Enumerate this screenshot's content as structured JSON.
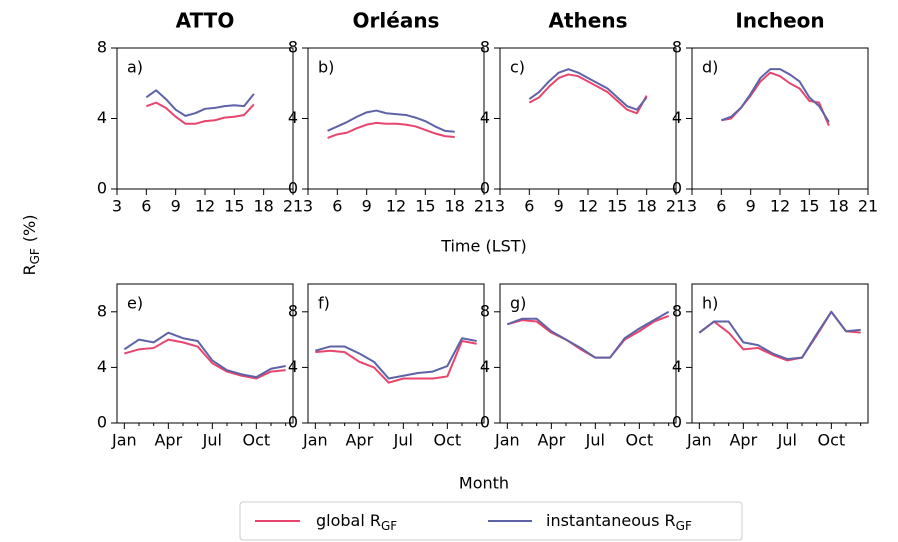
{
  "ylabel": {
    "text": "R",
    "subscript": "GF",
    "unit": "(%)"
  },
  "xlabel_top": "Time (LST)",
  "xlabel_bottom": "Month",
  "legend": {
    "entries": [
      {
        "text": "global R",
        "subscript": "GF",
        "color": "#e8456e"
      },
      {
        "text": "instantaneous R",
        "subscript": "GF",
        "color": "#5e63a8"
      }
    ]
  },
  "chart_data": [
    {
      "type": "line",
      "title": "ATTO",
      "panel_label": "a)",
      "x": [
        6,
        7,
        8,
        9,
        10,
        11,
        12,
        13,
        14,
        15,
        16,
        17
      ],
      "xlim": [
        3,
        21
      ],
      "xticks": [
        3,
        6,
        9,
        12,
        15,
        18,
        21
      ],
      "ylim": [
        0,
        8
      ],
      "yticks": [
        0,
        4,
        8
      ],
      "series": [
        {
          "color": "#e8456e",
          "values": [
            4.7,
            4.9,
            4.6,
            4.1,
            3.7,
            3.7,
            3.85,
            3.9,
            4.05,
            4.1,
            4.2,
            4.8
          ]
        },
        {
          "color": "#5e63a8",
          "values": [
            5.2,
            5.6,
            5.1,
            4.5,
            4.15,
            4.3,
            4.55,
            4.6,
            4.7,
            4.75,
            4.7,
            5.4
          ]
        }
      ]
    },
    {
      "type": "line",
      "title": "Orléans",
      "panel_label": "b)",
      "x": [
        5,
        6,
        7,
        8,
        9,
        10,
        11,
        12,
        13,
        14,
        15,
        16,
        17,
        18
      ],
      "xlim": [
        3,
        21
      ],
      "xticks": [
        3,
        6,
        9,
        12,
        15,
        18,
        21
      ],
      "ylim": [
        0,
        8
      ],
      "yticks": [
        0,
        4,
        8
      ],
      "series": [
        {
          "color": "#e8456e",
          "values": [
            2.9,
            3.1,
            3.2,
            3.45,
            3.65,
            3.75,
            3.7,
            3.7,
            3.65,
            3.55,
            3.35,
            3.15,
            3.0,
            2.95
          ]
        },
        {
          "color": "#5e63a8",
          "values": [
            3.3,
            3.55,
            3.8,
            4.1,
            4.35,
            4.45,
            4.3,
            4.25,
            4.2,
            4.05,
            3.85,
            3.55,
            3.3,
            3.25
          ]
        }
      ]
    },
    {
      "type": "line",
      "title": "Athens",
      "panel_label": "c)",
      "x": [
        6,
        7,
        8,
        9,
        10,
        11,
        12,
        13,
        14,
        15,
        16,
        17,
        18
      ],
      "xlim": [
        3,
        21
      ],
      "xticks": [
        3,
        6,
        9,
        12,
        15,
        18,
        21
      ],
      "ylim": [
        0,
        8
      ],
      "yticks": [
        0,
        4,
        8
      ],
      "series": [
        {
          "color": "#e8456e",
          "values": [
            4.9,
            5.2,
            5.8,
            6.3,
            6.5,
            6.4,
            6.1,
            5.8,
            5.5,
            5.0,
            4.5,
            4.3,
            5.3
          ]
        },
        {
          "color": "#5e63a8",
          "values": [
            5.1,
            5.5,
            6.1,
            6.6,
            6.8,
            6.6,
            6.3,
            6.0,
            5.7,
            5.2,
            4.7,
            4.5,
            5.2
          ]
        }
      ]
    },
    {
      "type": "line",
      "title": "Incheon",
      "panel_label": "d)",
      "x": [
        6,
        7,
        8,
        9,
        10,
        11,
        12,
        13,
        14,
        15,
        16,
        17
      ],
      "xlim": [
        3,
        21
      ],
      "xticks": [
        3,
        6,
        9,
        12,
        15,
        18,
        21
      ],
      "ylim": [
        0,
        8
      ],
      "yticks": [
        0,
        4,
        8
      ],
      "series": [
        {
          "color": "#e8456e",
          "values": [
            3.9,
            4.0,
            4.6,
            5.3,
            6.1,
            6.6,
            6.4,
            6.0,
            5.7,
            5.0,
            4.9,
            3.6
          ]
        },
        {
          "color": "#5e63a8",
          "values": [
            3.9,
            4.1,
            4.6,
            5.4,
            6.3,
            6.8,
            6.8,
            6.5,
            6.1,
            5.2,
            4.7,
            3.8
          ]
        }
      ]
    },
    {
      "type": "line",
      "panel_label": "e)",
      "categories": [
        "Jan",
        null,
        null,
        "Apr",
        null,
        null,
        "Jul",
        null,
        null,
        "Oct",
        null,
        null
      ],
      "ylim": [
        0,
        10
      ],
      "yticks": [
        0,
        4,
        8
      ],
      "series": [
        {
          "color": "#e8456e",
          "values": [
            5.0,
            5.3,
            5.4,
            6.0,
            5.8,
            5.5,
            4.3,
            3.7,
            3.4,
            3.2,
            3.7,
            3.8
          ]
        },
        {
          "color": "#5e63a8",
          "values": [
            5.3,
            6.0,
            5.8,
            6.5,
            6.1,
            5.9,
            4.5,
            3.8,
            3.5,
            3.3,
            3.9,
            4.1
          ]
        }
      ]
    },
    {
      "type": "line",
      "panel_label": "f)",
      "categories": [
        "Jan",
        null,
        null,
        "Apr",
        null,
        null,
        "Jul",
        null,
        null,
        "Oct",
        null,
        null
      ],
      "ylim": [
        0,
        10
      ],
      "yticks": [
        0,
        4,
        8
      ],
      "series": [
        {
          "color": "#e8456e",
          "values": [
            5.1,
            5.2,
            5.1,
            4.4,
            4.0,
            2.9,
            3.2,
            3.2,
            3.2,
            3.35,
            5.9,
            5.7
          ]
        },
        {
          "color": "#5e63a8",
          "values": [
            5.2,
            5.5,
            5.5,
            5.0,
            4.4,
            3.2,
            3.4,
            3.6,
            3.7,
            4.1,
            6.1,
            5.9
          ]
        }
      ]
    },
    {
      "type": "line",
      "panel_label": "g)",
      "categories": [
        "Jan",
        null,
        null,
        "Apr",
        null,
        null,
        "Jul",
        null,
        null,
        "Oct",
        null,
        null
      ],
      "ylim": [
        0,
        10
      ],
      "yticks": [
        0,
        4,
        8
      ],
      "series": [
        {
          "color": "#e8456e",
          "values": [
            7.1,
            7.4,
            7.3,
            6.5,
            6.0,
            5.3,
            4.7,
            4.7,
            6.0,
            6.6,
            7.3,
            7.7
          ]
        },
        {
          "color": "#5e63a8",
          "values": [
            7.1,
            7.5,
            7.5,
            6.6,
            6.0,
            5.4,
            4.7,
            4.7,
            6.1,
            6.8,
            7.4,
            8.0
          ]
        }
      ]
    },
    {
      "type": "line",
      "panel_label": "h)",
      "categories": [
        "Jan",
        null,
        null,
        "Apr",
        null,
        null,
        "Jul",
        null,
        null,
        "Oct",
        null,
        null
      ],
      "ylim": [
        0,
        10
      ],
      "yticks": [
        0,
        4,
        8
      ],
      "series": [
        {
          "color": "#e8456e",
          "values": [
            6.5,
            7.3,
            6.5,
            5.3,
            5.4,
            4.9,
            4.5,
            4.7,
            6.3,
            8.0,
            6.6,
            6.5
          ]
        },
        {
          "color": "#5e63a8",
          "values": [
            6.5,
            7.3,
            7.3,
            5.8,
            5.6,
            5.0,
            4.6,
            4.7,
            6.4,
            8.0,
            6.6,
            6.7
          ]
        }
      ]
    }
  ]
}
